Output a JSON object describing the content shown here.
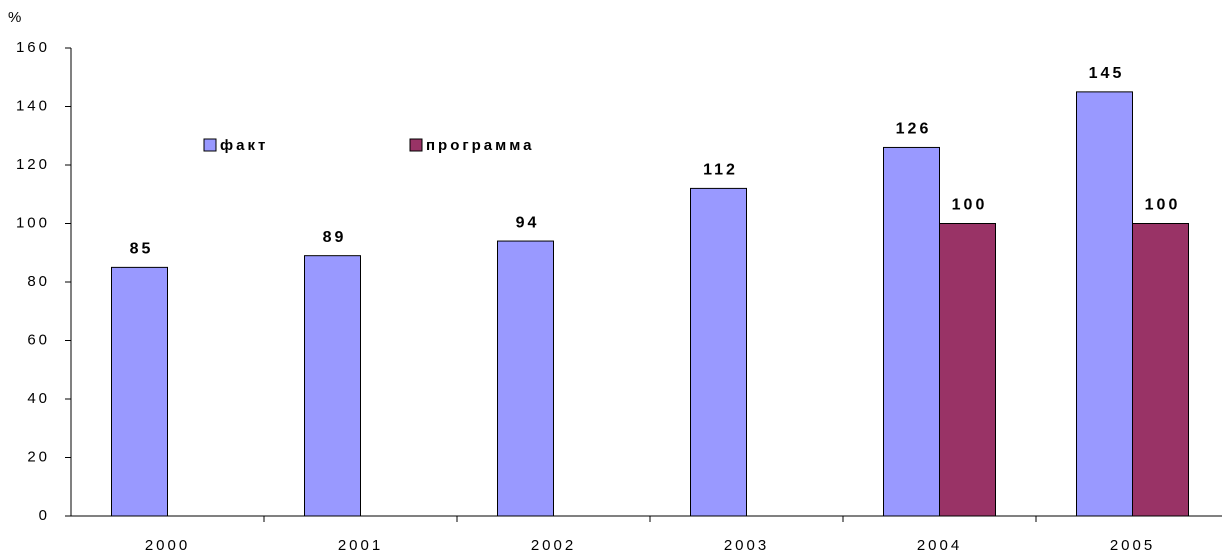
{
  "chart_data": {
    "type": "bar",
    "ylabel": "%",
    "categories": [
      "2000",
      "2001",
      "2002",
      "2003",
      "2004",
      "2005"
    ],
    "series": [
      {
        "name": "факт",
        "color": "#9999ff",
        "values": [
          85,
          89,
          94,
          112,
          126,
          145
        ]
      },
      {
        "name": "программа",
        "color": "#993366",
        "values": [
          null,
          null,
          null,
          null,
          100,
          100
        ]
      }
    ],
    "ylim": [
      0,
      160
    ],
    "yticks": [
      0,
      20,
      40,
      60,
      80,
      100,
      120,
      140,
      160
    ],
    "legend": "top-left"
  }
}
